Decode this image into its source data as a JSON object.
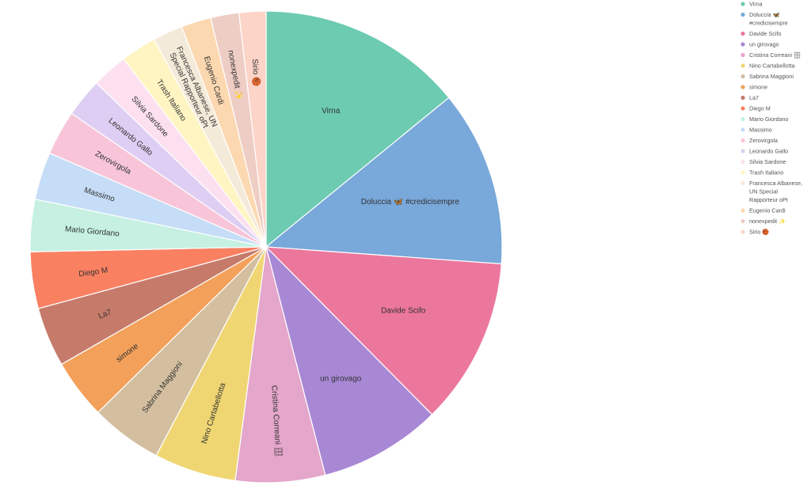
{
  "chart_data": {
    "type": "pie",
    "legend_position": "top-right",
    "slices": [
      {
        "label": "Virna",
        "value": 138,
        "color": "#6ccbb0"
      },
      {
        "label": "Doluccia 🦋 #credicisempre",
        "value": 118,
        "color": "#79a8da"
      },
      {
        "label": "Davide Scifo",
        "value": 112,
        "color": "#ec779c"
      },
      {
        "label": "un girovago",
        "value": 82,
        "color": "#a888d5"
      },
      {
        "label": "Cristina Correani 🗄",
        "value": 60,
        "color": "#e4a6ca"
      },
      {
        "label": "Nino Cartabellotta",
        "value": 55,
        "color": "#f0d672"
      },
      {
        "label": "Sabrina Maggioni",
        "value": 48,
        "color": "#d3bf9f"
      },
      {
        "label": "simone",
        "value": 40,
        "color": "#f2a05a"
      },
      {
        "label": "La7",
        "value": 40,
        "color": "#c67b6a"
      },
      {
        "label": "Diego M",
        "value": 38,
        "color": "#fa8062"
      },
      {
        "label": "Mario Giordano",
        "value": 35,
        "color": "#c5f0e2"
      },
      {
        "label": "Massimo",
        "value": 32,
        "color": "#c6ddf7"
      },
      {
        "label": "Zerovirgola",
        "value": 30,
        "color": "#f8c5d8"
      },
      {
        "label": "Leonardo Gallo",
        "value": 26,
        "color": "#decef3"
      },
      {
        "label": "Silvia Sardone",
        "value": 24,
        "color": "#fce0ef"
      },
      {
        "label": "Trash Italiano",
        "value": 24,
        "color": "#fff5c3"
      },
      {
        "label": "Francesca Albanese, UN Special Rapporteur oPt",
        "value": 20,
        "color": "#f4ead9"
      },
      {
        "label": "Eugenio Cardi",
        "value": 20,
        "color": "#fcd8b1"
      },
      {
        "label": "nonexpedit ✨",
        "value": 19,
        "color": "#eecdc4"
      },
      {
        "label": "Sirio 🏀",
        "value": 18,
        "color": "#fcd4c8"
      }
    ],
    "legend_items": [
      [
        "Virna"
      ],
      [
        "Doluccia 🦋",
        "#credicisempre"
      ],
      [
        "Davide Scifo"
      ],
      [
        "un girovago"
      ],
      [
        "Cristina Correani 🗄"
      ],
      [
        "Nino Cartabellotta"
      ],
      [
        "Sabrina Maggioni"
      ],
      [
        "simone"
      ],
      [
        "La7"
      ],
      [
        "Diego M"
      ],
      [
        "Mario Giordano"
      ],
      [
        "Massimo"
      ],
      [
        "Zerovirgola"
      ],
      [
        "Leonardo Gallo"
      ],
      [
        "Silvia Sardone"
      ],
      [
        "Trash Italiano"
      ],
      [
        "Francesca Albanese,",
        "UN Special",
        "Rapporteur oPt"
      ],
      [
        "Eugenio Cardi"
      ],
      [
        "nonexpedit ✨"
      ],
      [
        "Sirio 🏀"
      ]
    ],
    "slice_label_lines": [
      [
        "Virna"
      ],
      [
        "Doluccia 🦋 #credicisempre"
      ],
      [
        "Davide Scifo"
      ],
      [
        "un girovago"
      ],
      [
        "Cristina Correani 🗄"
      ],
      [
        "Nino Cartabellotta"
      ],
      [
        "Sabrina Maggioni"
      ],
      [
        "simone"
      ],
      [
        "La7"
      ],
      [
        "Diego M"
      ],
      [
        "Mario Giordano"
      ],
      [
        "Massimo"
      ],
      [
        "Zerovirgola"
      ],
      [
        "Leonardo Gallo"
      ],
      [
        "Silvia Sardone"
      ],
      [
        "Trash Italiano"
      ],
      [
        "Francesca Albanese, UN",
        "Special Rapporteur oPt"
      ],
      [
        "Eugenio Cardi"
      ],
      [
        "nonexpedit ✨"
      ],
      [
        "Sirio 🏀"
      ]
    ]
  }
}
